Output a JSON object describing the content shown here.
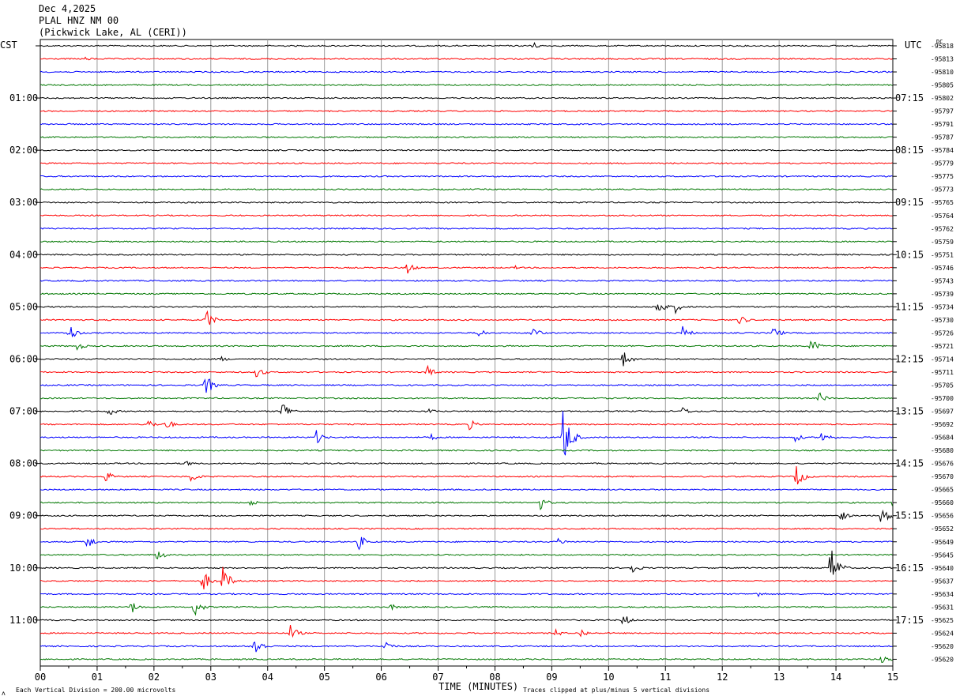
{
  "header": {
    "date": "Dec 4,2025",
    "station": "PLAL HNZ NM 00",
    "location": "(Pickwick Lake, AL (CERI))"
  },
  "left_axis_title": "CST",
  "right_axis_title": "UTC",
  "dc_label": "DC",
  "footer": {
    "scale_note": "Each Vertical Division =  200.00 microvolts",
    "clip_note": "Traces clipped at plus/minus 5 vertical divisions",
    "logo_glyph": "ʌ"
  },
  "chart_data": {
    "type": "line",
    "title": "",
    "xlabel": "TIME (MINUTES)",
    "xlim": [
      0,
      15
    ],
    "x_ticks": [
      "00",
      "01",
      "02",
      "03",
      "04",
      "05",
      "06",
      "07",
      "08",
      "09",
      "10",
      "11",
      "12",
      "13",
      "14",
      "15"
    ],
    "grid": true,
    "trace_colors": [
      "#000000",
      "#ff0000",
      "#0000ff",
      "#007700"
    ],
    "left_time_labels": [
      "01:00",
      "02:00",
      "03:00",
      "04:00",
      "05:00",
      "06:00",
      "07:00",
      "08:00",
      "09:00",
      "10:00",
      "11:00"
    ],
    "right_time_labels": [
      "07:15",
      "08:15",
      "09:15",
      "10:15",
      "11:15",
      "12:15",
      "13:15",
      "14:15",
      "15:15",
      "16:15",
      "17:15"
    ],
    "dc_offsets": [
      -95818,
      -95813,
      -95810,
      -95805,
      -95802,
      -95797,
      -95791,
      -95787,
      -95784,
      -95779,
      -95775,
      -95773,
      -95765,
      -95764,
      -95762,
      -95759,
      -95751,
      -95746,
      -95743,
      -95739,
      -95734,
      -95730,
      -95726,
      -95721,
      -95714,
      -95711,
      -95705,
      -95700,
      -95697,
      -95692,
      -95684,
      -95680,
      -95676,
      -95670,
      -95665,
      -95660,
      -95656,
      -95652,
      -95649,
      -95645,
      -95640,
      -95637,
      -95634,
      -95631,
      -95625,
      -95624,
      -95620,
      -95620
    ],
    "events": [
      {
        "trace": 0,
        "minute": 8.6,
        "amp": 9
      },
      {
        "trace": 1,
        "minute": 0.8,
        "amp": 3
      },
      {
        "trace": 17,
        "minute": 6.45,
        "amp": 9
      },
      {
        "trace": 17,
        "minute": 8.35,
        "amp": 3
      },
      {
        "trace": 20,
        "minute": 10.85,
        "amp": 14
      },
      {
        "trace": 20,
        "minute": 11.15,
        "amp": 10
      },
      {
        "trace": 21,
        "minute": 2.9,
        "amp": 16
      },
      {
        "trace": 21,
        "minute": 12.3,
        "amp": 8
      },
      {
        "trace": 22,
        "minute": 0.5,
        "amp": 13
      },
      {
        "trace": 22,
        "minute": 7.7,
        "amp": 8
      },
      {
        "trace": 22,
        "minute": 8.65,
        "amp": 10
      },
      {
        "trace": 22,
        "minute": 11.3,
        "amp": 10
      },
      {
        "trace": 22,
        "minute": 12.9,
        "amp": 9
      },
      {
        "trace": 23,
        "minute": 0.65,
        "amp": 6
      },
      {
        "trace": 23,
        "minute": 13.55,
        "amp": 11
      },
      {
        "trace": 24,
        "minute": 3.15,
        "amp": 5
      },
      {
        "trace": 24,
        "minute": 10.25,
        "amp": 14
      },
      {
        "trace": 25,
        "minute": 3.8,
        "amp": 9
      },
      {
        "trace": 25,
        "minute": 6.8,
        "amp": 9
      },
      {
        "trace": 26,
        "minute": 2.9,
        "amp": 16
      },
      {
        "trace": 27,
        "minute": 13.7,
        "amp": 8
      },
      {
        "trace": 28,
        "minute": 1.2,
        "amp": 7
      },
      {
        "trace": 28,
        "minute": 4.25,
        "amp": 16
      },
      {
        "trace": 28,
        "minute": 6.8,
        "amp": 5
      },
      {
        "trace": 28,
        "minute": 11.3,
        "amp": 6
      },
      {
        "trace": 29,
        "minute": 1.9,
        "amp": 7
      },
      {
        "trace": 29,
        "minute": 2.2,
        "amp": 9
      },
      {
        "trace": 29,
        "minute": 7.55,
        "amp": 7
      },
      {
        "trace": 30,
        "minute": 4.85,
        "amp": 10
      },
      {
        "trace": 30,
        "minute": 6.85,
        "amp": 6
      },
      {
        "trace": 30,
        "minute": 9.2,
        "amp": 40
      },
      {
        "trace": 30,
        "minute": 13.25,
        "amp": 8
      },
      {
        "trace": 30,
        "minute": 13.75,
        "amp": 11
      },
      {
        "trace": 32,
        "minute": 2.55,
        "amp": 5
      },
      {
        "trace": 33,
        "minute": 1.15,
        "amp": 8
      },
      {
        "trace": 33,
        "minute": 2.65,
        "amp": 9
      },
      {
        "trace": 33,
        "minute": 13.3,
        "amp": 16
      },
      {
        "trace": 35,
        "minute": 3.7,
        "amp": 5
      },
      {
        "trace": 35,
        "minute": 8.8,
        "amp": 9
      },
      {
        "trace": 35,
        "minute": 15.0,
        "amp": 6
      },
      {
        "trace": 36,
        "minute": 14.05,
        "amp": 10
      },
      {
        "trace": 36,
        "minute": 14.8,
        "amp": 16
      },
      {
        "trace": 38,
        "minute": 0.8,
        "amp": 12
      },
      {
        "trace": 38,
        "minute": 5.6,
        "amp": 11
      },
      {
        "trace": 38,
        "minute": 9.1,
        "amp": 6
      },
      {
        "trace": 39,
        "minute": 2.05,
        "amp": 9
      },
      {
        "trace": 40,
        "minute": 10.4,
        "amp": 9
      },
      {
        "trace": 40,
        "minute": 13.9,
        "amp": 30
      },
      {
        "trace": 41,
        "minute": 2.85,
        "amp": 16
      },
      {
        "trace": 41,
        "minute": 3.2,
        "amp": 20
      },
      {
        "trace": 42,
        "minute": 12.6,
        "amp": 6
      },
      {
        "trace": 43,
        "minute": 1.6,
        "amp": 9
      },
      {
        "trace": 43,
        "minute": 2.7,
        "amp": 14
      },
      {
        "trace": 43,
        "minute": 6.15,
        "amp": 5
      },
      {
        "trace": 44,
        "minute": 10.25,
        "amp": 9
      },
      {
        "trace": 45,
        "minute": 4.4,
        "amp": 11
      },
      {
        "trace": 45,
        "minute": 9.05,
        "amp": 6
      },
      {
        "trace": 45,
        "minute": 9.5,
        "amp": 7
      },
      {
        "trace": 46,
        "minute": 3.75,
        "amp": 18
      },
      {
        "trace": 46,
        "minute": 6.05,
        "amp": 10
      },
      {
        "trace": 47,
        "minute": 14.8,
        "amp": 7
      }
    ]
  }
}
